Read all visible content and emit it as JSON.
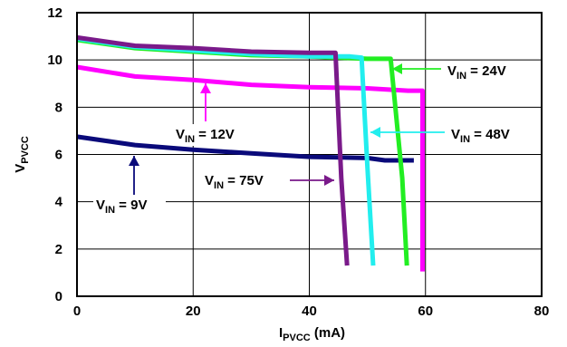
{
  "chart_data": {
    "type": "line",
    "xlabel": {
      "main": "I",
      "sub": "PVCC",
      "unit": " (mA)"
    },
    "ylabel": {
      "main": "V",
      "sub": "PVCC"
    },
    "xlim": [
      0,
      80
    ],
    "ylim": [
      0,
      12
    ],
    "xticks": [
      "0",
      "20",
      "40",
      "60",
      "80"
    ],
    "yticks": [
      "0",
      "2",
      "4",
      "6",
      "8",
      "10",
      "12"
    ],
    "grid": true,
    "series": [
      {
        "name": "V_IN = 9V",
        "label": {
          "main": "V",
          "sub": "IN",
          "tail": " = 9V"
        },
        "color": "#0a0a7a",
        "x": [
          0,
          10,
          20,
          30,
          40,
          50,
          53,
          58
        ],
        "y": [
          6.75,
          6.4,
          6.2,
          6.05,
          5.9,
          5.85,
          5.75,
          5.75
        ]
      },
      {
        "name": "V_IN = 12V",
        "label": {
          "main": "V",
          "sub": "IN",
          "tail": " = 12V"
        },
        "color": "#ff00ff",
        "x": [
          0,
          10,
          20,
          30,
          40,
          50,
          57,
          59.5,
          59.5
        ],
        "y": [
          9.7,
          9.3,
          9.15,
          8.95,
          8.85,
          8.8,
          8.7,
          8.7,
          1.05
        ]
      },
      {
        "name": "V_IN = 24V",
        "label": {
          "main": "V",
          "sub": "IN",
          "tail": " = 24V"
        },
        "color": "#22ee22",
        "x": [
          0,
          10,
          20,
          30,
          40,
          50,
          54,
          56,
          56.8
        ],
        "y": [
          10.85,
          10.5,
          10.35,
          10.2,
          10.15,
          10.05,
          10.05,
          5.0,
          1.3
        ]
      },
      {
        "name": "V_IN = 48V",
        "label": {
          "main": "V",
          "sub": "IN",
          "tail": " = 48V"
        },
        "color": "#22eeee",
        "x": [
          0,
          10,
          20,
          30,
          40,
          47,
          49,
          50,
          51
        ],
        "y": [
          10.9,
          10.55,
          10.4,
          10.25,
          10.15,
          10.15,
          10.1,
          5.5,
          1.3
        ]
      },
      {
        "name": "V_IN = 75V",
        "label": {
          "main": "V",
          "sub": "IN",
          "tail": " = 75V"
        },
        "color": "#7a1a8a",
        "x": [
          0,
          10,
          20,
          30,
          40,
          44.5,
          45.5,
          46.5
        ],
        "y": [
          10.95,
          10.6,
          10.5,
          10.35,
          10.3,
          10.3,
          5.0,
          1.3
        ]
      }
    ]
  }
}
